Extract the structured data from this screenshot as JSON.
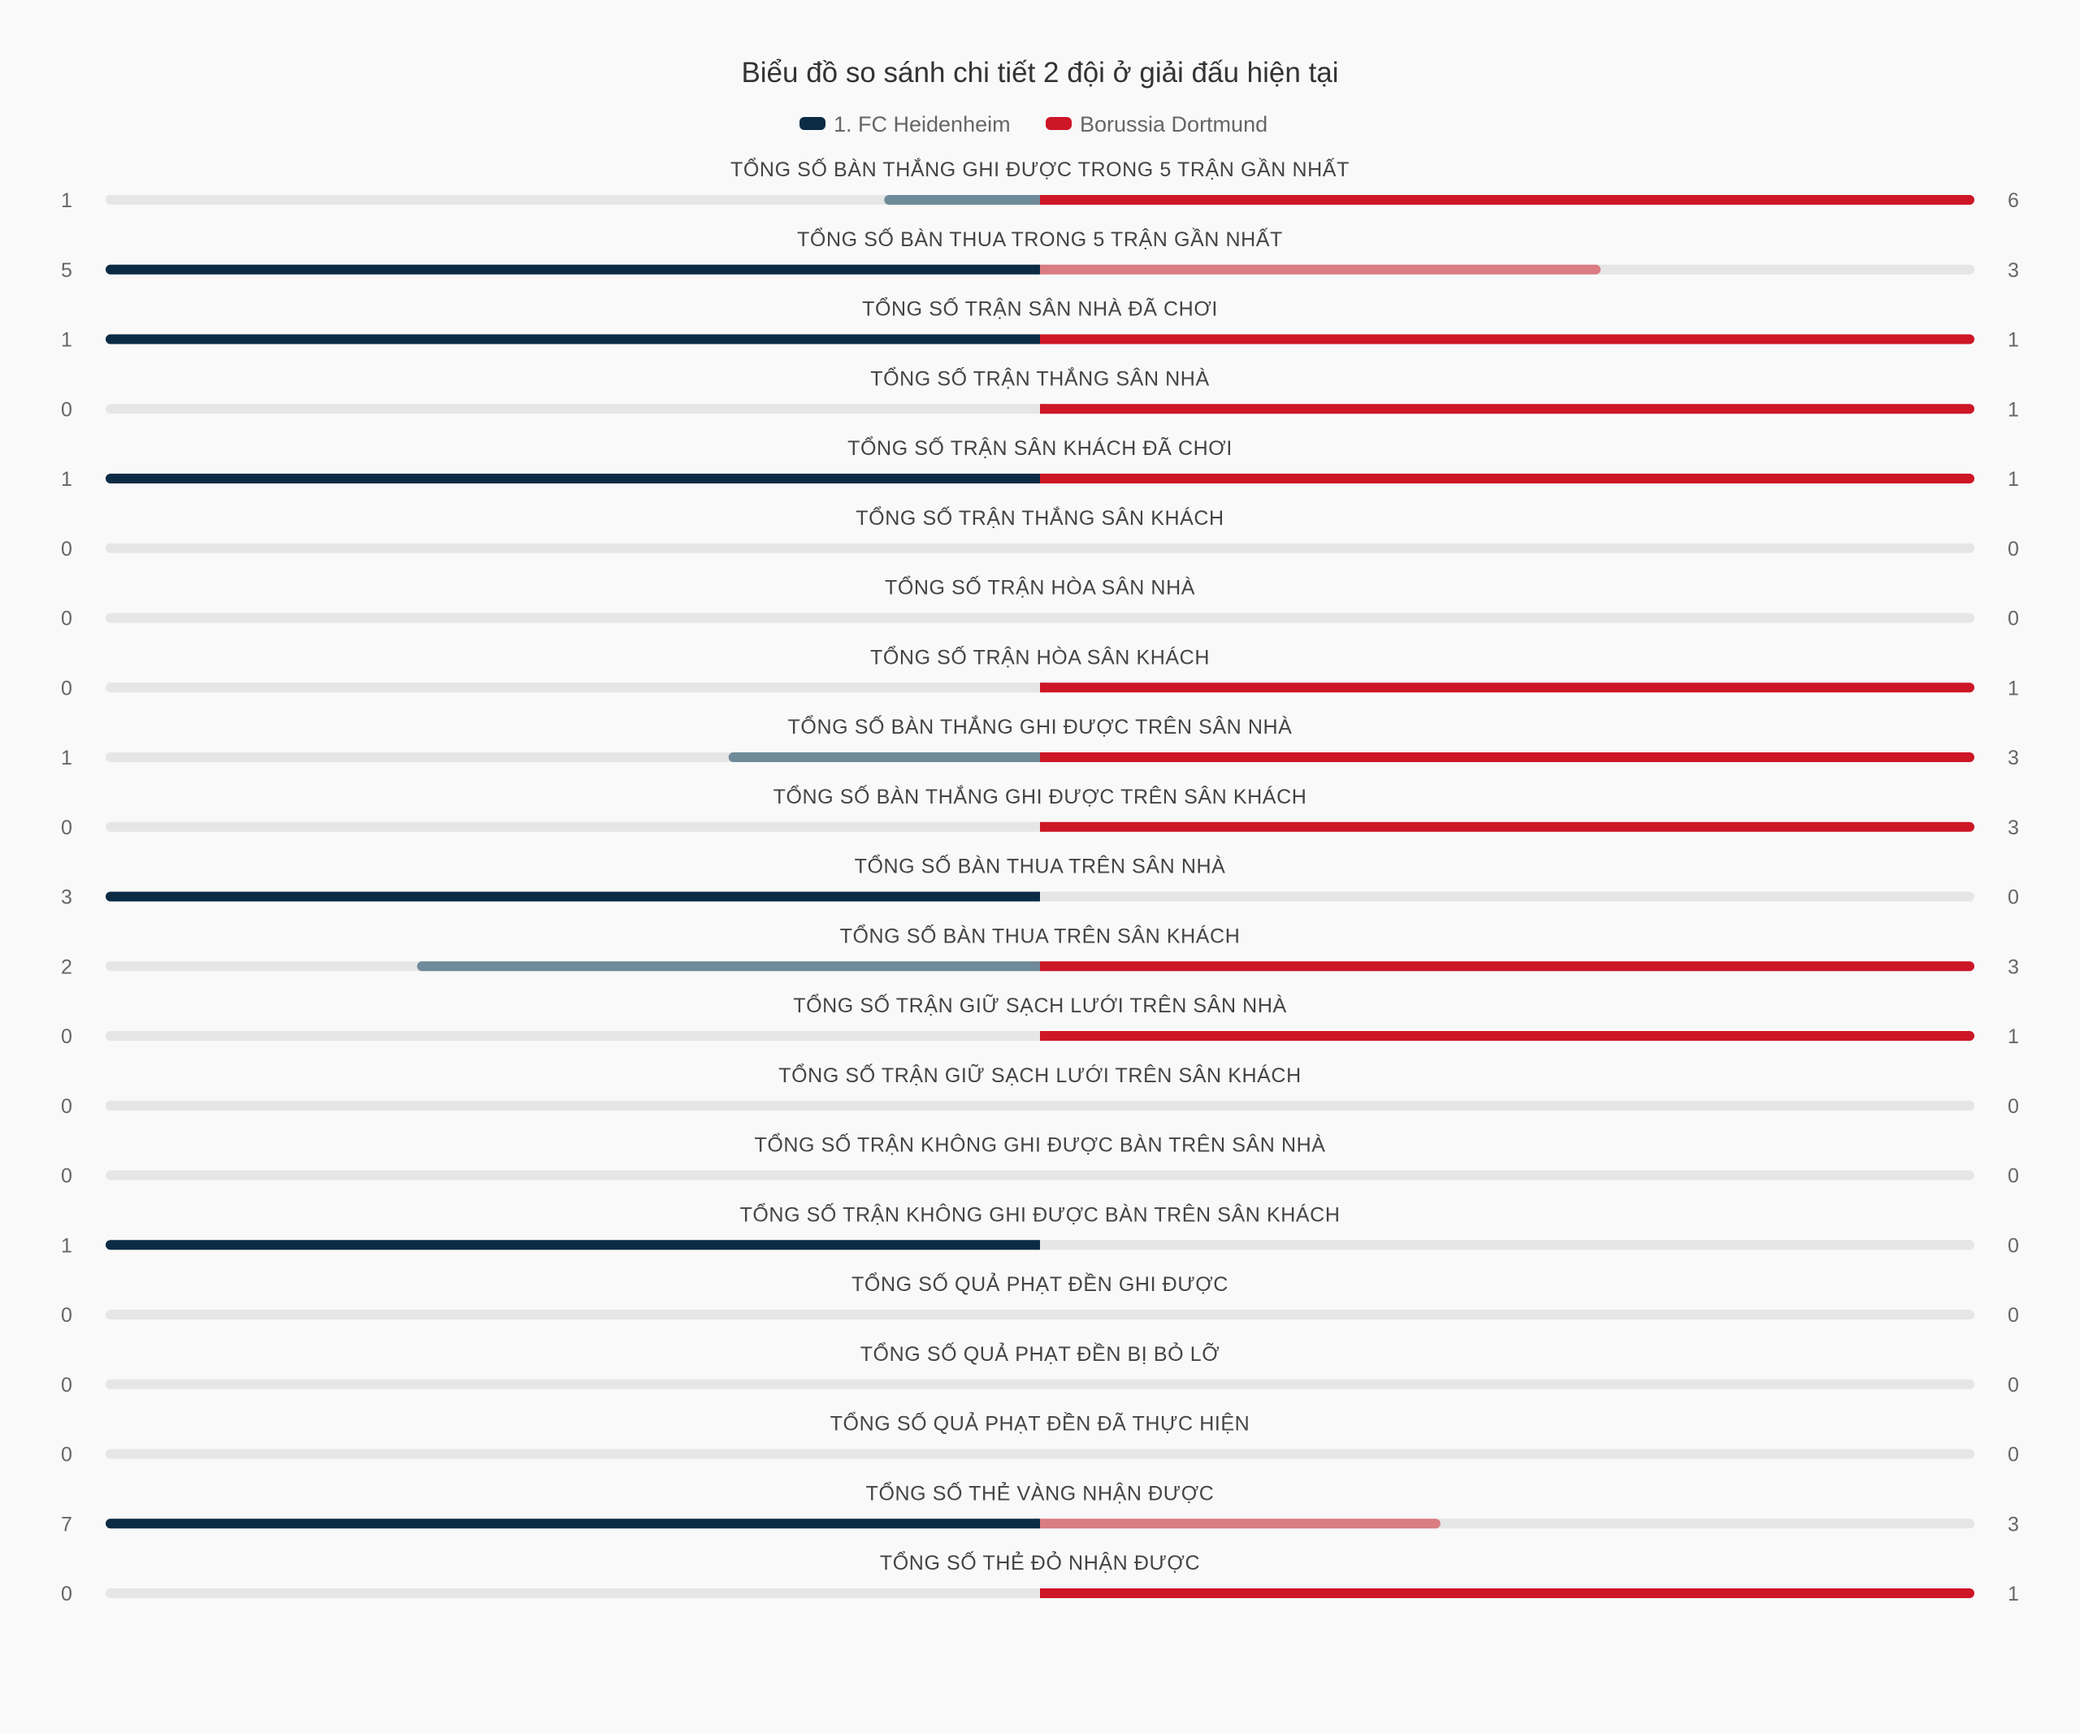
{
  "chart_data": {
    "type": "bar",
    "orientation": "diverging-horizontal",
    "title": "Biểu đồ so sánh chi tiết 2 đội ở giải đấu hiện tại",
    "legend_position": "top-center",
    "colors": {
      "home_strong": "#0b2b45",
      "home_muted": "#6f8a98",
      "away_strong": "#cd1626",
      "away_muted": "#d97d83",
      "track": "#e6e6e6"
    },
    "series": [
      {
        "name": "1. FC Heidenheim",
        "values": [
          1,
          5,
          1,
          0,
          1,
          0,
          0,
          0,
          1,
          0,
          3,
          2,
          0,
          0,
          0,
          1,
          0,
          0,
          0,
          7,
          0
        ]
      },
      {
        "name": "Borussia Dortmund",
        "values": [
          6,
          3,
          1,
          1,
          1,
          0,
          0,
          1,
          3,
          3,
          0,
          3,
          1,
          0,
          0,
          0,
          0,
          0,
          0,
          3,
          1
        ]
      }
    ],
    "categories": [
      "TỔNG SỐ BÀN THẮNG GHI ĐƯỢC TRONG 5 TRẬN GẦN NHẤT",
      "TỔNG SỐ BÀN THUA TRONG 5 TRẬN GẦN NHẤT",
      "TỔNG SỐ TRẬN SÂN NHÀ ĐÃ CHƠI",
      "TỔNG SỐ TRẬN THẮNG SÂN NHÀ",
      "TỔNG SỐ TRẬN SÂN KHÁCH ĐÃ CHƠI",
      "TỔNG SỐ TRẬN THẮNG SÂN KHÁCH",
      "TỔNG SỐ TRẬN HÒA SÂN NHÀ",
      "TỔNG SỐ TRẬN HÒA SÂN KHÁCH",
      "TỔNG SỐ BÀN THẮNG GHI ĐƯỢC TRÊN SÂN NHÀ",
      "TỔNG SỐ BÀN THẮNG GHI ĐƯỢC TRÊN SÂN KHÁCH",
      "TỔNG SỐ BÀN THUA TRÊN SÂN NHÀ",
      "TỔNG SỐ BÀN THUA TRÊN SÂN KHÁCH",
      "TỔNG SỐ TRẬN GIỮ SẠCH LƯỚI TRÊN SÂN NHÀ",
      "TỔNG SỐ TRẬN GIỮ SẠCH LƯỚI TRÊN SÂN KHÁCH",
      "TỔNG SỐ TRẬN KHÔNG GHI ĐƯỢC BÀN TRÊN SÂN NHÀ",
      "TỔNG SỐ TRẬN KHÔNG GHI ĐƯỢC BÀN TRÊN SÂN KHÁCH",
      "TỔNG SỐ QUẢ PHẠT ĐỀN GHI ĐƯỢC",
      "TỔNG SỐ QUẢ PHẠT ĐỀN BỊ BỎ LỠ",
      "TỔNG SỐ QUẢ PHẠT ĐỀN ĐÃ THỰC HIỆN",
      "TỔNG SỐ THẺ VÀNG NHẬN ĐƯỢC",
      "TỔNG SỐ THẺ ĐỎ NHẬN ĐƯỢC"
    ]
  }
}
